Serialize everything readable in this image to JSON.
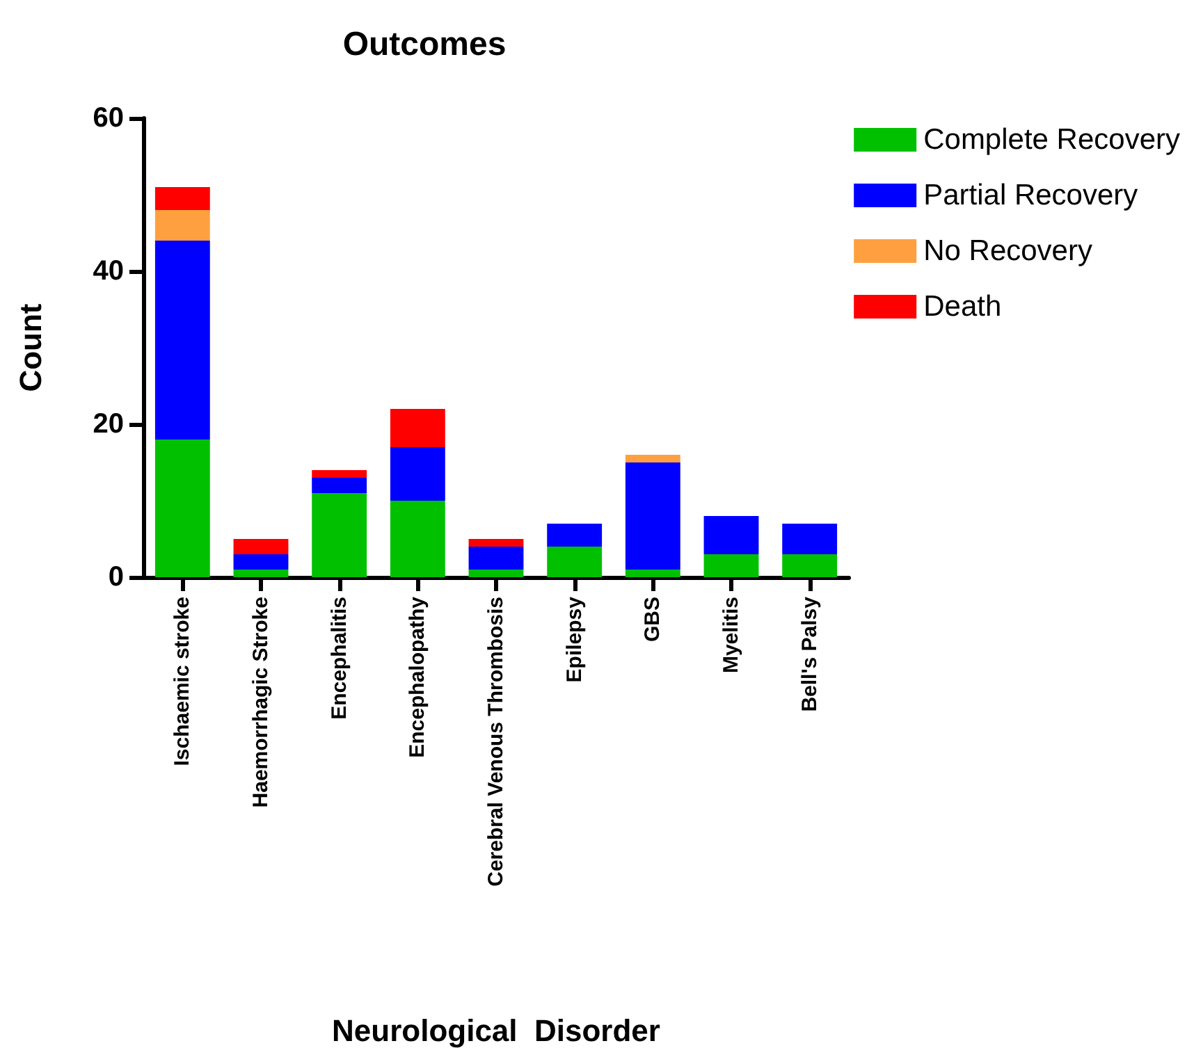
{
  "chart_data": {
    "type": "bar",
    "title": "Outcomes",
    "xlabel": "Neurological  Disorder",
    "ylabel": "Count",
    "stacked": true,
    "grid": false,
    "legend": "top right",
    "categories": [
      "Ischaemic stroke",
      "Haemorrhagic Stroke",
      "Encephalitis",
      "Encephalopathy",
      "Cerebral Venous Thrombosis",
      "Epilepsy",
      "GBS",
      "Myelitis",
      "Bell's Palsy"
    ],
    "series": [
      {
        "name": "Complete Recovery",
        "color": "#00c000",
        "values": [
          18,
          1,
          11,
          10,
          1,
          4,
          1,
          3,
          3
        ]
      },
      {
        "name": "Partial Recovery",
        "color": "#0000ff",
        "values": [
          26,
          2,
          2,
          7,
          3,
          3,
          14,
          5,
          4
        ]
      },
      {
        "name": "No Recovery",
        "color": "#ffa040",
        "values": [
          4,
          0,
          0,
          0,
          0,
          0,
          1,
          0,
          0
        ]
      },
      {
        "name": "Death",
        "color": "#ff0000",
        "values": [
          3,
          2,
          1,
          5,
          1,
          0,
          0,
          0,
          0
        ]
      }
    ],
    "ylim": [
      0,
      60
    ],
    "yticks": [
      0,
      20,
      40,
      60
    ]
  }
}
